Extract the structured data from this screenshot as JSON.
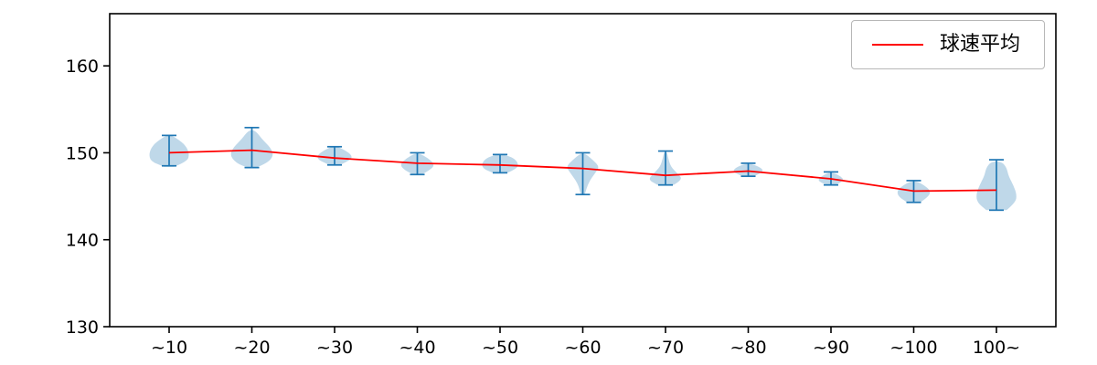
{
  "chart_data": {
    "type": "violin",
    "title": "",
    "xlabel": "",
    "ylabel": "",
    "grid": false,
    "legend_position": "top-right",
    "categories": [
      "~10",
      "~20",
      "~30",
      "~40",
      "~50",
      "~60",
      "~70",
      "~80",
      "~90",
      "~100",
      "100~"
    ],
    "yticks": [
      130,
      140,
      150,
      160
    ],
    "ylim": [
      130,
      166
    ],
    "violin_fill": "#bcd6e8",
    "violin_edge": "#1f77b4",
    "axis_color": "#000000",
    "series": [
      {
        "name": "球速平均",
        "type": "line",
        "color": "#ff0000",
        "values": [
          150.0,
          150.3,
          149.4,
          148.8,
          148.6,
          148.2,
          147.4,
          147.9,
          147.0,
          145.6,
          145.7
        ]
      }
    ],
    "violins": [
      {
        "category": "~10",
        "whisker_min": 148.5,
        "whisker_max": 152.0,
        "width": 0.49,
        "profile": [
          [
            148.4,
            0.25
          ],
          [
            149.0,
            0.9
          ],
          [
            149.9,
            1.0
          ],
          [
            150.9,
            0.8
          ],
          [
            151.6,
            0.4
          ],
          [
            152.0,
            0.12
          ]
        ]
      },
      {
        "category": "~20",
        "whisker_min": 148.3,
        "whisker_max": 152.9,
        "width": 0.53,
        "profile": [
          [
            148.3,
            0.2
          ],
          [
            148.8,
            0.7
          ],
          [
            149.7,
            1.0
          ],
          [
            150.6,
            0.85
          ],
          [
            151.6,
            0.45
          ],
          [
            152.6,
            0.15
          ]
        ]
      },
      {
        "category": "~30",
        "whisker_min": 148.6,
        "whisker_max": 150.7,
        "width": 0.42,
        "profile": [
          [
            148.6,
            0.3
          ],
          [
            149.2,
            0.95
          ],
          [
            149.7,
            1.0
          ],
          [
            150.3,
            0.6
          ],
          [
            150.7,
            0.18
          ]
        ]
      },
      {
        "category": "~40",
        "whisker_min": 147.5,
        "whisker_max": 150.0,
        "width": 0.42,
        "profile": [
          [
            147.5,
            0.25
          ],
          [
            148.1,
            0.8
          ],
          [
            148.7,
            1.0
          ],
          [
            149.4,
            0.6
          ],
          [
            149.9,
            0.15
          ]
        ]
      },
      {
        "category": "~50",
        "whisker_min": 147.7,
        "whisker_max": 149.8,
        "width": 0.44,
        "profile": [
          [
            147.7,
            0.4
          ],
          [
            148.2,
            0.95
          ],
          [
            148.8,
            1.0
          ],
          [
            149.4,
            0.75
          ],
          [
            149.8,
            0.2
          ]
        ]
      },
      {
        "category": "~60",
        "whisker_min": 145.2,
        "whisker_max": 150.0,
        "width": 0.4,
        "profile": [
          [
            145.2,
            0.12
          ],
          [
            146.5,
            0.3
          ],
          [
            147.8,
            0.8
          ],
          [
            148.4,
            1.0
          ],
          [
            149.2,
            0.6
          ],
          [
            149.9,
            0.15
          ]
        ]
      },
      {
        "category": "~70",
        "whisker_min": 146.3,
        "whisker_max": 150.2,
        "width": 0.42,
        "profile": [
          [
            146.3,
            0.45
          ],
          [
            146.9,
            1.0
          ],
          [
            147.6,
            0.7
          ],
          [
            148.4,
            0.3
          ],
          [
            149.4,
            0.15
          ],
          [
            150.1,
            0.08
          ]
        ]
      },
      {
        "category": "~80",
        "whisker_min": 147.3,
        "whisker_max": 148.8,
        "width": 0.38,
        "profile": [
          [
            147.3,
            0.35
          ],
          [
            147.8,
            1.0
          ],
          [
            148.3,
            0.8
          ],
          [
            148.7,
            0.25
          ]
        ]
      },
      {
        "category": "~90",
        "whisker_min": 146.3,
        "whisker_max": 147.8,
        "width": 0.33,
        "profile": [
          [
            146.3,
            0.35
          ],
          [
            146.8,
            1.0
          ],
          [
            147.3,
            0.7
          ],
          [
            147.7,
            0.2
          ]
        ]
      },
      {
        "category": "~100",
        "whisker_min": 144.3,
        "whisker_max": 146.8,
        "width": 0.4,
        "profile": [
          [
            144.3,
            0.4
          ],
          [
            145.0,
            0.95
          ],
          [
            145.7,
            1.0
          ],
          [
            146.3,
            0.6
          ],
          [
            146.7,
            0.2
          ]
        ]
      },
      {
        "category": "100~",
        "whisker_min": 143.4,
        "whisker_max": 149.2,
        "width": 0.49,
        "profile": [
          [
            143.4,
            0.5
          ],
          [
            144.3,
            0.95
          ],
          [
            145.2,
            1.0
          ],
          [
            146.2,
            0.85
          ],
          [
            147.3,
            0.6
          ],
          [
            148.3,
            0.5
          ],
          [
            149.0,
            0.25
          ]
        ]
      }
    ]
  }
}
